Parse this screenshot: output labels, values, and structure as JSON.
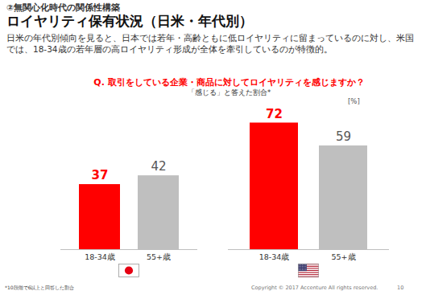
{
  "header": {
    "section": "②無関心化時代の関係性構築",
    "title": "ロイヤリティ保有状況（日米・年代別）",
    "description": "日米の年代別傾向を見ると、日本では若年・高齢ともに低ロイヤリティに留まっているのに対し、米国では、18-34歳の若年層の高ロイヤリティ形成が全体を牽引しているのが特徴的。"
  },
  "question": "Q. 取引をしている企業・商品に対してロイヤリティを感じますか？",
  "subtitle": "「感じる」と答えた割合*",
  "unit": "[%]",
  "chart_data": [
    {
      "type": "bar",
      "categories": [
        "18-34歳",
        "55+歳"
      ],
      "values": [
        37,
        42
      ],
      "colors": [
        "#ff0000",
        "#bfbfbf"
      ],
      "ylim": [
        0,
        80
      ],
      "yticks": [],
      "data_labels": true,
      "tick_labels": "x",
      "grid": false
    },
    {
      "type": "bar",
      "categories": [
        "18-34歳",
        "55+歳"
      ],
      "values": [
        72,
        59
      ],
      "colors": [
        "#ff0000",
        "#bfbfbf"
      ],
      "ylim": [
        0,
        80
      ],
      "yticks": [],
      "data_labels": true,
      "tick_labels": "x",
      "grid": false
    }
  ],
  "footnote": "*10段階で6以上と回答した割合",
  "copyright": "Copyright © 2017 Accenture  All rights reserved.",
  "page": 10
}
